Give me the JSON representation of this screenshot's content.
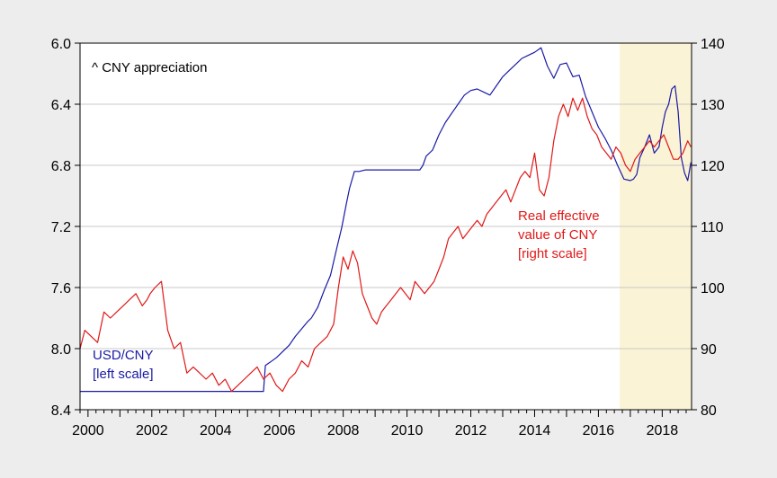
{
  "chart_data": {
    "type": "line",
    "title": "",
    "annotation_top": "^ CNY appreciation",
    "x_ticks": [
      "2000",
      "2002",
      "2004",
      "2006",
      "2008",
      "2010",
      "2012",
      "2014",
      "2016",
      "2018"
    ],
    "x_range": [
      1999.75,
      2018.92
    ],
    "y_left": {
      "inverted": true,
      "range": [
        6.0,
        8.4
      ],
      "ticks": [
        "6.0",
        "6.4",
        "6.8",
        "7.2",
        "7.6",
        "8.0",
        "8.4"
      ]
    },
    "y_right": {
      "range": [
        80,
        140
      ],
      "ticks": [
        "80",
        "90",
        "100",
        "110",
        "120",
        "130",
        "140"
      ]
    },
    "grid": true,
    "shaded_period": {
      "start": 2016.67,
      "end": 2018.92,
      "color": "#fbf3d5"
    },
    "series": [
      {
        "name": "USD/CNY",
        "label_lines": [
          "USD/CNY",
          "[left scale]"
        ],
        "axis": "left",
        "color": "#1a1aa6",
        "x": [
          1999.75,
          2005.5,
          2005.56,
          2005.7,
          2005.9,
          2006.1,
          2006.3,
          2006.5,
          2006.7,
          2006.9,
          2007.0,
          2007.2,
          2007.4,
          2007.6,
          2007.8,
          2007.95,
          2008.1,
          2008.2,
          2008.35,
          2008.5,
          2008.7,
          2009.0,
          2009.5,
          2010.0,
          2010.4,
          2010.5,
          2010.6,
          2010.8,
          2011.0,
          2011.2,
          2011.4,
          2011.6,
          2011.8,
          2012.0,
          2012.2,
          2012.4,
          2012.6,
          2012.8,
          2013.0,
          2013.2,
          2013.4,
          2013.6,
          2013.8,
          2014.0,
          2014.2,
          2014.4,
          2014.6,
          2014.8,
          2015.0,
          2015.2,
          2015.4,
          2015.6,
          2015.7,
          2015.8,
          2016.0,
          2016.2,
          2016.4,
          2016.6,
          2016.8,
          2017.0,
          2017.1,
          2017.2,
          2017.3,
          2017.45,
          2017.6,
          2017.75,
          2017.9,
          2018.0,
          2018.1,
          2018.2,
          2018.3,
          2018.4,
          2018.5,
          2018.6,
          2018.7,
          2018.8,
          2018.9
        ],
        "values": [
          8.28,
          8.28,
          8.11,
          8.09,
          8.06,
          8.02,
          7.98,
          7.92,
          7.87,
          7.82,
          7.8,
          7.73,
          7.62,
          7.52,
          7.34,
          7.21,
          7.05,
          6.95,
          6.84,
          6.84,
          6.83,
          6.83,
          6.83,
          6.83,
          6.83,
          6.8,
          6.74,
          6.7,
          6.6,
          6.52,
          6.46,
          6.4,
          6.34,
          6.31,
          6.3,
          6.32,
          6.34,
          6.28,
          6.22,
          6.18,
          6.14,
          6.1,
          6.08,
          6.06,
          6.03,
          6.15,
          6.23,
          6.14,
          6.13,
          6.22,
          6.21,
          6.35,
          6.4,
          6.45,
          6.55,
          6.62,
          6.7,
          6.8,
          6.89,
          6.9,
          6.89,
          6.86,
          6.75,
          6.68,
          6.6,
          6.72,
          6.68,
          6.55,
          6.45,
          6.4,
          6.3,
          6.28,
          6.45,
          6.75,
          6.85,
          6.9,
          6.78
        ]
      },
      {
        "name": "Real effective value of CNY",
        "label_lines": [
          "Real effective",
          "value of CNY",
          "[right scale]"
        ],
        "axis": "right",
        "color": "#e01818",
        "x": [
          1999.75,
          1999.9,
          2000.1,
          2000.3,
          2000.5,
          2000.7,
          2000.9,
          2001.1,
          2001.3,
          2001.5,
          2001.7,
          2001.85,
          2001.95,
          2002.1,
          2002.3,
          2002.5,
          2002.7,
          2002.9,
          2003.1,
          2003.3,
          2003.5,
          2003.7,
          2003.9,
          2004.1,
          2004.3,
          2004.5,
          2004.7,
          2004.9,
          2005.1,
          2005.3,
          2005.5,
          2005.7,
          2005.9,
          2006.1,
          2006.3,
          2006.5,
          2006.7,
          2006.9,
          2007.1,
          2007.3,
          2007.5,
          2007.7,
          2007.85,
          2008.0,
          2008.15,
          2008.3,
          2008.45,
          2008.6,
          2008.75,
          2008.9,
          2009.05,
          2009.2,
          2009.35,
          2009.5,
          2009.65,
          2009.8,
          2009.95,
          2010.1,
          2010.25,
          2010.4,
          2010.55,
          2010.7,
          2010.85,
          2011.0,
          2011.15,
          2011.3,
          2011.45,
          2011.6,
          2011.75,
          2011.9,
          2012.05,
          2012.2,
          2012.35,
          2012.5,
          2012.65,
          2012.8,
          2012.95,
          2013.1,
          2013.25,
          2013.4,
          2013.55,
          2013.7,
          2013.85,
          2014.0,
          2014.15,
          2014.3,
          2014.45,
          2014.6,
          2014.75,
          2014.9,
          2015.05,
          2015.2,
          2015.35,
          2015.5,
          2015.65,
          2015.8,
          2015.95,
          2016.1,
          2016.25,
          2016.4,
          2016.55,
          2016.7,
          2016.85,
          2017.0,
          2017.15,
          2017.3,
          2017.45,
          2017.6,
          2017.75,
          2017.9,
          2018.05,
          2018.2,
          2018.35,
          2018.5,
          2018.65,
          2018.8,
          2018.9
        ],
        "values": [
          90,
          93,
          92,
          91,
          96,
          95,
          96,
          97,
          98,
          99,
          97,
          98,
          99,
          100,
          101,
          93,
          90,
          91,
          86,
          87,
          86,
          85,
          86,
          84,
          85,
          83,
          84,
          85,
          86,
          87,
          85,
          86,
          84,
          83,
          85,
          86,
          88,
          87,
          90,
          91,
          92,
          94,
          100,
          105,
          103,
          106,
          104,
          99,
          97,
          95,
          94,
          96,
          97,
          98,
          99,
          100,
          99,
          98,
          101,
          100,
          99,
          100,
          101,
          103,
          105,
          108,
          109,
          110,
          108,
          109,
          110,
          111,
          110,
          112,
          113,
          114,
          115,
          116,
          114,
          116,
          118,
          119,
          118,
          122,
          116,
          115,
          118,
          124,
          128,
          130,
          128,
          131,
          129,
          131,
          128,
          126,
          125,
          123,
          122,
          121,
          123,
          122,
          120,
          119,
          121,
          122,
          123,
          124,
          123,
          124,
          125,
          123,
          121,
          121,
          122,
          124,
          123
        ]
      }
    ]
  }
}
